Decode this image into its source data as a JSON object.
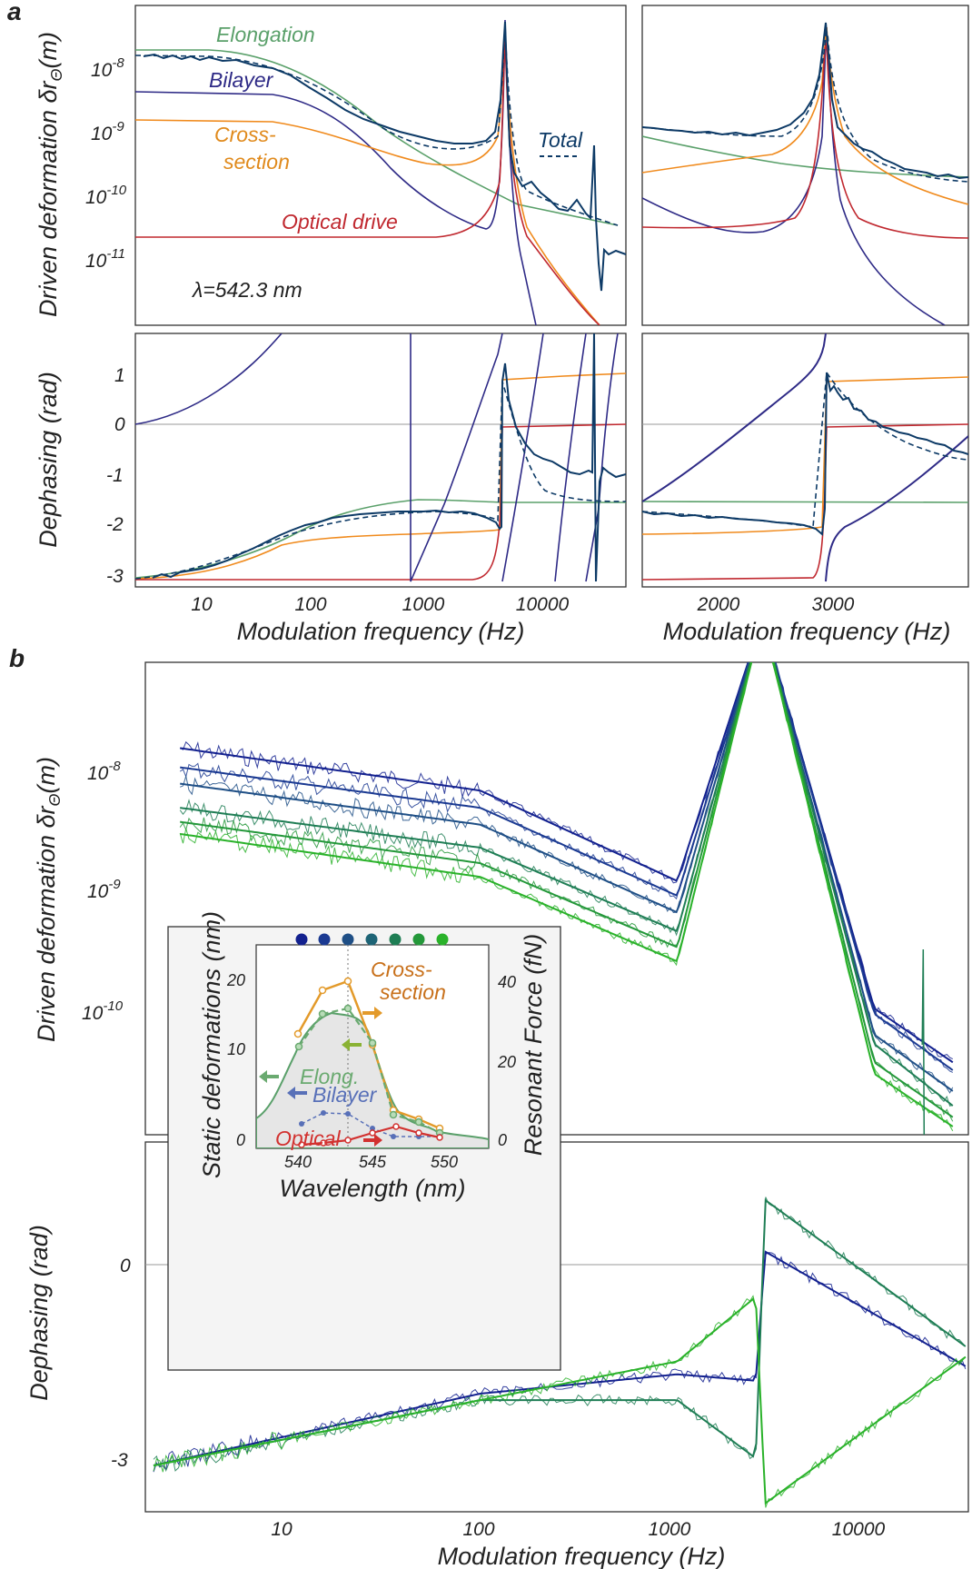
{
  "panels": {
    "a_label": "a",
    "b_label": "b"
  },
  "colors": {
    "elongation": "#5aa06a",
    "bilayer": "#2e2a86",
    "cross_section": "#f08a1c",
    "optical": "#c0282f",
    "total": "#0d3a66",
    "fit_blue": "#13218f",
    "fit_green": "#2ab22a",
    "inset_orange": "#e39a2a",
    "inset_green": "#6aaa70",
    "inset_blue": "#5870b8",
    "inset_red": "#d2312f"
  },
  "panel_a": {
    "amp_ylabel": "Driven deformation δr",
    "amp_ylabel_sub": "Θ",
    "amp_ylabel_unit": "(m)",
    "phase_ylabel": "Dephasing (rad)",
    "xlabel_left": "Modulation frequency (Hz)",
    "xlabel_right": "Modulation frequency (Hz)",
    "amp_ticks": [
      {
        "base": "10",
        "exp": "-8"
      },
      {
        "base": "10",
        "exp": "-9"
      },
      {
        "base": "10",
        "exp": "-10"
      },
      {
        "base": "10",
        "exp": "-11"
      }
    ],
    "phase_ticks": [
      "1",
      "0",
      "-1",
      "-2",
      "-3"
    ],
    "log_x_ticks": [
      "10",
      "100",
      "1000",
      "10000"
    ],
    "lin_x_ticks": [
      "2000",
      "3000"
    ],
    "series_labels": {
      "elongation": "Elongation",
      "bilayer": "Bilayer",
      "cross_section_1": "Cross-",
      "cross_section_2": "section",
      "optical": "Optical drive",
      "total": "Total"
    },
    "lambda_label": "λ=542.3 nm"
  },
  "panel_b": {
    "amp_ylabel": "Driven deformation δr",
    "amp_ylabel_sub": "Θ",
    "amp_ylabel_unit": "(m)",
    "phase_ylabel": "Dephasing (rad)",
    "xlabel": "Modulation frequency (Hz)",
    "amp_ticks": [
      {
        "base": "10",
        "exp": "-8"
      },
      {
        "base": "10",
        "exp": "-9"
      },
      {
        "base": "10",
        "exp": "-10"
      }
    ],
    "phase_ticks": [
      "0",
      "-3"
    ],
    "x_ticks": [
      "10",
      "100",
      "1000",
      "10000"
    ],
    "series_colors": [
      "#13218f",
      "#1b3a92",
      "#1f4f86",
      "#1e6476",
      "#1f7e55",
      "#24983a",
      "#2ab22a"
    ]
  },
  "inset": {
    "ylabel_left": "Static deformations (nm)",
    "ylabel_right": "Resonant  Force  (fN)",
    "xlabel": "Wavelength (nm)",
    "x_ticks": [
      "540",
      "545",
      "550"
    ],
    "y_left_ticks": [
      "0",
      "10",
      "20"
    ],
    "y_right_ticks": [
      "0",
      "20",
      "40"
    ],
    "labels": {
      "cross_1": "Cross-",
      "cross_2": "section",
      "elong": "Elong.",
      "bilayer": "Bilayer",
      "optical": "Optical"
    },
    "dot_colors": [
      "#13218f",
      "#1b3a92",
      "#1f4f86",
      "#1e6476",
      "#1f7e55",
      "#24983a",
      "#2ab22a"
    ]
  },
  "chart_data": [
    {
      "type": "line",
      "panel": "a (top-left)",
      "xscale": "log",
      "yscale": "log",
      "xlim": [
        2,
        30000
      ],
      "ylim": [
        1e-12,
        1e-07
      ],
      "xlabel": "Modulation frequency (Hz)",
      "ylabel": "Driven deformation δrΘ (m)",
      "series": [
        {
          "name": "Elongation",
          "x": [
            2,
            100,
            1000,
            2700,
            25000
          ],
          "y": [
            2e-08,
            8e-09,
            1e-09,
            3.5e-10,
            4e-11
          ]
        },
        {
          "name": "Bilayer",
          "x": [
            2,
            100,
            1000,
            2000,
            2700,
            6000
          ],
          "y": [
            4.5e-09,
            2.5e-09,
            1.5e-10,
            3e-11,
            5e-08,
            1e-12
          ]
        },
        {
          "name": "Cross-section",
          "x": [
            2,
            100,
            1000,
            2000,
            2700,
            20000
          ],
          "y": [
            1.8e-09,
            1.1e-09,
            3.5e-10,
            3e-10,
            6e-08,
            1e-12
          ]
        },
        {
          "name": "Optical drive",
          "x": [
            2,
            100,
            1000,
            2000,
            2700,
            20000
          ],
          "y": [
            2.8e-11,
            2.8e-11,
            3e-11,
            5e-11,
            6e-08,
            1e-12
          ]
        },
        {
          "name": "Total",
          "x": [
            2,
            100,
            1000,
            2700,
            10000,
            17000,
            30000
          ],
          "y": [
            1.8e-08,
            7e-09,
            1.2e-09,
            6e-08,
            9e-11,
            6e-10,
            1.4e-11
          ]
        }
      ],
      "annotations": [
        "λ=542.3 nm"
      ]
    },
    {
      "type": "line",
      "panel": "a (top-right)",
      "xscale": "linear",
      "yscale": "log",
      "xlim": [
        1100,
        3900
      ],
      "ylim": [
        1e-12,
        1e-07
      ],
      "series": [
        {
          "name": "Elongation",
          "x": [
            1100,
            2700,
            3900
          ],
          "y": [
            9e-10,
            3.5e-10,
            2.4e-10
          ]
        },
        {
          "name": "Bilayer",
          "x": [
            1100,
            2000,
            2700,
            3900
          ],
          "y": [
            1.8e-10,
            3e-11,
            5e-08,
            1e-12
          ]
        },
        {
          "name": "Cross-section",
          "x": [
            1100,
            2000,
            2700,
            3900
          ],
          "y": [
            4e-10,
            3e-10,
            6e-08,
            1.3e-10
          ]
        },
        {
          "name": "Optical drive",
          "x": [
            1100,
            2000,
            2700,
            3900
          ],
          "y": [
            3e-11,
            5e-11,
            6e-08,
            3e-11
          ]
        },
        {
          "name": "Total",
          "x": [
            1100,
            2000,
            2700,
            3900
          ],
          "y": [
            1.3e-09,
            1.1e-09,
            6e-08,
            2e-10
          ]
        }
      ]
    },
    {
      "type": "line",
      "panel": "a (bottom-left)",
      "xscale": "log",
      "yscale": "linear",
      "xlim": [
        2,
        30000
      ],
      "ylim": [
        -3.14,
        1.6
      ],
      "xlabel": "Modulation frequency (Hz)",
      "ylabel": "Dephasing (rad)",
      "series": [
        {
          "name": "Elongation",
          "x": [
            2,
            100,
            800,
            2700,
            30000
          ],
          "y": [
            -3.1,
            -2.3,
            -1.55,
            -1.6,
            -1.6
          ]
        },
        {
          "name": "Bilayer",
          "x": [
            2,
            30,
            500
          ],
          "y": [
            0,
            0.6,
            1.6
          ]
        },
        {
          "name": "Cross-section",
          "x": [
            2,
            100,
            1000,
            2700,
            3000,
            30000
          ],
          "y": [
            -3.1,
            -2.6,
            -2.3,
            -2.2,
            0.9,
            1.0
          ]
        },
        {
          "name": "Optical drive",
          "x": [
            2,
            2600,
            2800,
            30000
          ],
          "y": [
            -3.1,
            -3.0,
            0,
            0
          ]
        },
        {
          "name": "Total",
          "x": [
            2,
            100,
            1000,
            2600,
            2800,
            10000,
            30000
          ],
          "y": [
            -3.1,
            -2.2,
            -1.75,
            -2.0,
            0.9,
            -1.2,
            -1.2
          ]
        }
      ]
    },
    {
      "type": "line",
      "panel": "a (bottom-right)",
      "xscale": "linear",
      "yscale": "linear",
      "xlim": [
        1100,
        3900
      ],
      "ylim": [
        -3.14,
        1.6
      ],
      "xlabel": "Modulation frequency (Hz)",
      "series": [
        {
          "name": "Elongation",
          "x": [
            1100,
            3900
          ],
          "y": [
            -1.55,
            -1.58
          ]
        },
        {
          "name": "Bilayer",
          "x": [
            1100,
            2650,
            2750,
            3900
          ],
          "y": [
            -1.6,
            1.5,
            -3.0,
            -0.3
          ]
        },
        {
          "name": "Cross-section",
          "x": [
            1100,
            2650,
            2750,
            3900
          ],
          "y": [
            -2.3,
            -2.2,
            0.85,
            0.9
          ]
        },
        {
          "name": "Optical drive",
          "x": [
            1100,
            2650,
            2750,
            3900
          ],
          "y": [
            -3.1,
            -3.0,
            -0.1,
            0
          ]
        },
        {
          "name": "Total",
          "x": [
            1100,
            2600,
            2750,
            3000,
            3900
          ],
          "y": [
            -1.75,
            -2.0,
            0.8,
            -0.1,
            -0.9
          ]
        }
      ]
    },
    {
      "type": "line",
      "panel": "b (top)",
      "xscale": "log",
      "yscale": "log",
      "xlim": [
        2,
        30000
      ],
      "ylim": [
        1e-11,
        3e-07
      ],
      "xlabel": "Modulation frequency (Hz)",
      "ylabel": "Driven deformation δrΘ (m)",
      "series": [
        {
          "x": [
            3,
            100,
            1000,
            2700,
            10000,
            25000
          ],
          "y": [
            1.6e-08,
            7e-09,
            1.2e-09,
            2e-07,
            1e-10,
            3.5e-11
          ]
        },
        {
          "x": [
            3,
            100,
            1000,
            2700,
            10000,
            25000
          ],
          "y": [
            1.1e-08,
            5e-09,
            9e-10,
            2e-07,
            9e-11,
            3e-11
          ]
        },
        {
          "x": [
            3,
            100,
            1000,
            2700,
            10000,
            25000
          ],
          "y": [
            8e-09,
            3.6e-09,
            6.5e-10,
            2e-07,
            6e-11,
            2e-11
          ]
        },
        {
          "x": [
            3,
            100,
            1000,
            2700,
            10000,
            25000
          ],
          "y": [
            5e-09,
            2.3e-09,
            4.5e-10,
            2e-07,
            5e-11,
            1.5e-11
          ]
        },
        {
          "x": [
            3,
            100,
            1000,
            2700,
            10000,
            25000
          ],
          "y": [
            3.8e-09,
            1.7e-09,
            3.3e-10,
            2e-07,
            3.5e-11,
            1.2e-11
          ]
        },
        {
          "x": [
            3,
            100,
            1000,
            2700,
            10000,
            25000
          ],
          "y": [
            3e-09,
            1.3e-09,
            2.5e-10,
            2e-07,
            2.8e-11,
            1e-11
          ]
        }
      ]
    },
    {
      "type": "line",
      "panel": "b (bottom)",
      "xscale": "log",
      "yscale": "linear",
      "xlim": [
        2,
        30000
      ],
      "ylim": [
        -3.7,
        1.7
      ],
      "xlabel": "Modulation frequency (Hz)",
      "ylabel": "Dephasing (rad)",
      "series": [
        {
          "x": [
            2,
            100,
            1000,
            2500,
            2800,
            30000
          ],
          "y": [
            -3.14,
            -2.0,
            -1.7,
            -1.8,
            0.2,
            -1.6
          ]
        },
        {
          "x": [
            2,
            100,
            1000,
            2500,
            2800,
            30000
          ],
          "y": [
            -3.14,
            -2.1,
            -2.1,
            -3.0,
            1.0,
            -1.3
          ]
        },
        {
          "x": [
            2,
            100,
            1000,
            2500,
            2800,
            30000
          ],
          "y": [
            -3.14,
            -2.1,
            -1.5,
            -0.5,
            -3.7,
            -1.4
          ]
        }
      ]
    },
    {
      "type": "line",
      "panel": "b (inset)",
      "xlabel": "Wavelength (nm)",
      "ylabel": "Static deformations (nm)",
      "ylabel_right": "Resonant  Force  (fN)",
      "xlim": [
        537,
        553
      ],
      "ylim": [
        0,
        25
      ],
      "series": [
        {
          "name": "Cross-section",
          "x": [
            540,
            541,
            542.3,
            544,
            545.5,
            547,
            549
          ],
          "y": [
            13,
            22,
            23,
            14,
            6.5,
            5.5,
            4.5
          ]
        },
        {
          "name": "Elong.",
          "x": [
            540,
            541,
            542.3,
            544,
            545.5,
            547,
            549
          ],
          "y": [
            11.5,
            19,
            20,
            12,
            5.5,
            4.8,
            4
          ]
        },
        {
          "name": "Bilayer",
          "x": [
            539,
            541,
            542.3,
            544,
            545.5,
            547,
            549
          ],
          "y": [
            3,
            4.5,
            4.3,
            2.5,
            1.2,
            1.2,
            1.2
          ]
        },
        {
          "name": "Optical",
          "x": [
            539,
            541,
            542.3,
            544,
            545.5,
            547,
            549
          ],
          "y": [
            0.3,
            0.5,
            0.7,
            2,
            2.7,
            2,
            1.2
          ]
        },
        {
          "name": "Resonant force",
          "x": [
            537,
            539,
            541,
            543,
            544,
            546,
            548,
            550,
            552,
            553
          ],
          "y": [
            6,
            8,
            14,
            18,
            15,
            8,
            5,
            3.5,
            3,
            2.8
          ]
        }
      ]
    }
  ]
}
